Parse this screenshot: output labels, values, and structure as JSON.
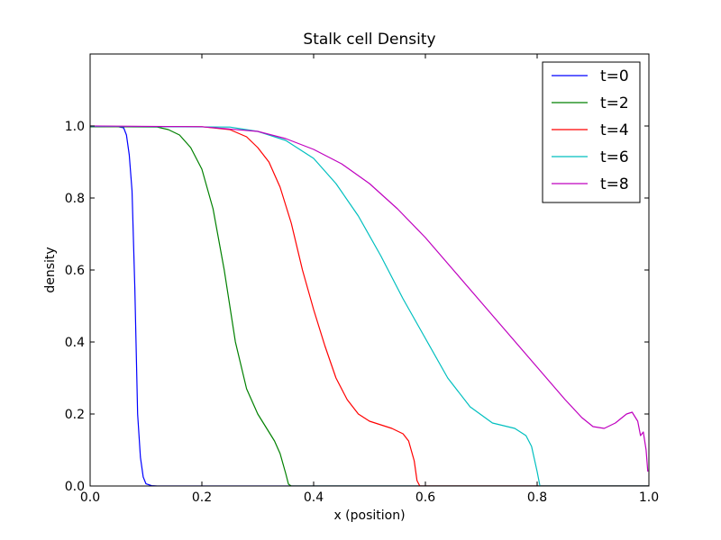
{
  "chart_data": {
    "type": "line",
    "title": "Stalk cell Density",
    "xlabel": "x (position)",
    "ylabel": "density",
    "xlim": [
      0.0,
      1.0
    ],
    "ylim": [
      0.0,
      1.2
    ],
    "xticks": [
      "0.0",
      "0.2",
      "0.4",
      "0.6",
      "0.8",
      "1.0"
    ],
    "yticks": [
      "0.0",
      "0.2",
      "0.4",
      "0.6",
      "0.8",
      "1.0"
    ],
    "grid": false,
    "legend_position": "top-right",
    "series": [
      {
        "name": "t=0",
        "color": "#0000ff",
        "points": [
          [
            0.0,
            0.998
          ],
          [
            0.05,
            0.998
          ],
          [
            0.06,
            0.995
          ],
          [
            0.065,
            0.975
          ],
          [
            0.07,
            0.92
          ],
          [
            0.075,
            0.82
          ],
          [
            0.08,
            0.55
          ],
          [
            0.085,
            0.2
          ],
          [
            0.09,
            0.08
          ],
          [
            0.095,
            0.025
          ],
          [
            0.1,
            0.006
          ],
          [
            0.11,
            0.001
          ],
          [
            0.12,
            0.0
          ],
          [
            1.0,
            0.0
          ]
        ]
      },
      {
        "name": "t=2",
        "color": "#008000",
        "points": [
          [
            0.0,
            0.998
          ],
          [
            0.12,
            0.997
          ],
          [
            0.14,
            0.99
          ],
          [
            0.16,
            0.975
          ],
          [
            0.18,
            0.94
          ],
          [
            0.2,
            0.88
          ],
          [
            0.22,
            0.77
          ],
          [
            0.24,
            0.6
          ],
          [
            0.26,
            0.4
          ],
          [
            0.28,
            0.27
          ],
          [
            0.3,
            0.2
          ],
          [
            0.32,
            0.15
          ],
          [
            0.33,
            0.125
          ],
          [
            0.34,
            0.09
          ],
          [
            0.35,
            0.035
          ],
          [
            0.355,
            0.005
          ],
          [
            0.36,
            0.0
          ],
          [
            1.0,
            0.0
          ]
        ]
      },
      {
        "name": "t=4",
        "color": "#ff0000",
        "points": [
          [
            0.0,
            0.999
          ],
          [
            0.2,
            0.998
          ],
          [
            0.25,
            0.99
          ],
          [
            0.28,
            0.97
          ],
          [
            0.3,
            0.94
          ],
          [
            0.32,
            0.9
          ],
          [
            0.34,
            0.83
          ],
          [
            0.36,
            0.73
          ],
          [
            0.38,
            0.6
          ],
          [
            0.4,
            0.49
          ],
          [
            0.42,
            0.39
          ],
          [
            0.44,
            0.3
          ],
          [
            0.46,
            0.24
          ],
          [
            0.48,
            0.2
          ],
          [
            0.5,
            0.18
          ],
          [
            0.52,
            0.17
          ],
          [
            0.54,
            0.16
          ],
          [
            0.56,
            0.145
          ],
          [
            0.57,
            0.125
          ],
          [
            0.58,
            0.07
          ],
          [
            0.585,
            0.015
          ],
          [
            0.59,
            0.0
          ],
          [
            1.0,
            0.0
          ]
        ]
      },
      {
        "name": "t=6",
        "color": "#00bfbf",
        "points": [
          [
            0.0,
            0.999
          ],
          [
            0.25,
            0.997
          ],
          [
            0.3,
            0.985
          ],
          [
            0.35,
            0.96
          ],
          [
            0.4,
            0.91
          ],
          [
            0.44,
            0.84
          ],
          [
            0.48,
            0.75
          ],
          [
            0.52,
            0.64
          ],
          [
            0.56,
            0.52
          ],
          [
            0.6,
            0.41
          ],
          [
            0.64,
            0.3
          ],
          [
            0.68,
            0.22
          ],
          [
            0.72,
            0.175
          ],
          [
            0.76,
            0.16
          ],
          [
            0.78,
            0.14
          ],
          [
            0.79,
            0.11
          ],
          [
            0.8,
            0.04
          ],
          [
            0.805,
            0.0
          ],
          [
            1.0,
            0.0
          ]
        ]
      },
      {
        "name": "t=8",
        "color": "#bf00bf",
        "points": [
          [
            0.0,
            1.0
          ],
          [
            0.2,
            0.998
          ],
          [
            0.3,
            0.985
          ],
          [
            0.35,
            0.965
          ],
          [
            0.4,
            0.935
          ],
          [
            0.45,
            0.895
          ],
          [
            0.5,
            0.84
          ],
          [
            0.55,
            0.77
          ],
          [
            0.6,
            0.69
          ],
          [
            0.65,
            0.6
          ],
          [
            0.7,
            0.51
          ],
          [
            0.75,
            0.42
          ],
          [
            0.8,
            0.33
          ],
          [
            0.85,
            0.24
          ],
          [
            0.88,
            0.19
          ],
          [
            0.9,
            0.165
          ],
          [
            0.92,
            0.16
          ],
          [
            0.94,
            0.175
          ],
          [
            0.96,
            0.2
          ],
          [
            0.97,
            0.205
          ],
          [
            0.98,
            0.18
          ],
          [
            0.985,
            0.14
          ],
          [
            0.99,
            0.15
          ],
          [
            0.995,
            0.1
          ],
          [
            0.998,
            0.04
          ]
        ]
      }
    ]
  }
}
